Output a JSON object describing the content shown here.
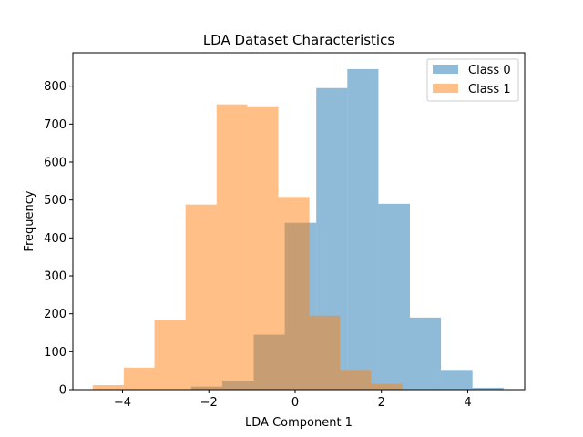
{
  "chart_data": {
    "type": "bar",
    "title": "LDA Dataset Characteristics",
    "xlabel": "LDA Component 1",
    "ylabel": "Frequency",
    "xlim": [
      -5.15,
      5.32
    ],
    "ylim": [
      0,
      888
    ],
    "xticks": [
      -4,
      -2,
      0,
      2,
      4
    ],
    "xtick_labels": [
      "−4",
      "−2",
      "0",
      "2",
      "4"
    ],
    "yticks": [
      0,
      100,
      200,
      300,
      400,
      500,
      600,
      700,
      800
    ],
    "ytick_labels": [
      "0",
      "100",
      "200",
      "300",
      "400",
      "500",
      "600",
      "700",
      "800"
    ],
    "grid": false,
    "legend_position": "top-right",
    "series": [
      {
        "name": "Class 0",
        "color": "#1f77b4",
        "opacity": 0.5,
        "bin_edges": [
          -2.41,
          -1.69,
          -0.96,
          -0.24,
          0.49,
          1.21,
          1.93,
          2.66,
          3.38,
          4.11,
          4.83
        ],
        "values": [
          8,
          24,
          145,
          440,
          795,
          845,
          490,
          190,
          52,
          5
        ]
      },
      {
        "name": "Class 1",
        "color": "#ff7f0e",
        "opacity": 0.5,
        "bin_edges": [
          -4.69,
          -3.97,
          -3.26,
          -2.54,
          -1.82,
          -1.11,
          -0.39,
          0.33,
          1.04,
          1.76,
          2.48
        ],
        "values": [
          12,
          58,
          183,
          488,
          752,
          747,
          508,
          195,
          52,
          15
        ]
      }
    ]
  }
}
